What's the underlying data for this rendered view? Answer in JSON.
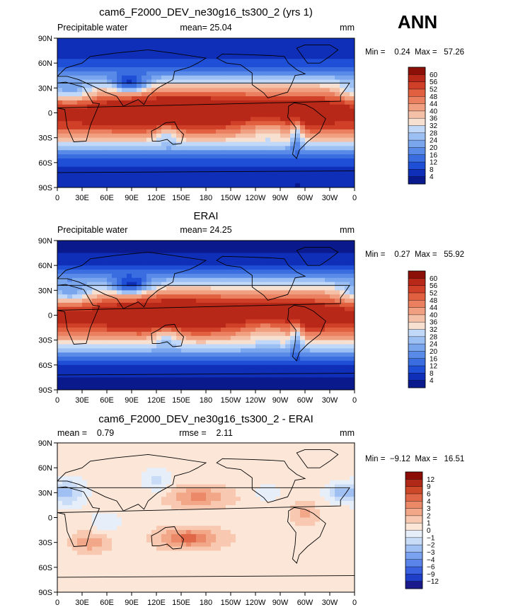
{
  "season_label": "ANN",
  "palettes": {
    "absolute": [
      "#0a1a8c",
      "#0f2fb8",
      "#1f4fd6",
      "#3a6de0",
      "#5a8ae8",
      "#7aa6ee",
      "#9cc0f3",
      "#c2d8f8",
      "#f8e0d0",
      "#f4c0a8",
      "#f0a080",
      "#ea8060",
      "#e06040",
      "#d04028",
      "#b82818",
      "#8c1008"
    ],
    "difference": [
      "#1a1a8c",
      "#1f3fc8",
      "#3a62e0",
      "#5a84ea",
      "#7aa2f0",
      "#a0c0f4",
      "#c8dcf8",
      "#e6eefa",
      "#fbe6d8",
      "#f8c8b0",
      "#f2a888",
      "#ea8868",
      "#e06848",
      "#cc4828",
      "#b02818",
      "#8c0c06"
    ]
  },
  "chart_data": [
    {
      "type": "heatmap",
      "id": "model",
      "title": "cam6_F2000_DEV_ne30g16_ts300_2 (yrs 1)",
      "left_label": "Precipitable water",
      "center_label": "mean=   25.04",
      "right_label": "mm",
      "minmax_label": "Min =    0.24  Max =   57.26",
      "min": 0.24,
      "max": 57.26,
      "mean": 25.04,
      "x_ticks": [
        "0",
        "30E",
        "60E",
        "90E",
        "120E",
        "150E",
        "180",
        "150W",
        "120W",
        "90W",
        "60W",
        "30W",
        "0"
      ],
      "y_ticks": [
        "90N",
        "60N",
        "30N",
        "0",
        "30S",
        "60S",
        "90S"
      ],
      "xlim": [
        0,
        360
      ],
      "ylim": [
        -90,
        90
      ],
      "colorbar_labels": [
        "60",
        "56",
        "52",
        "48",
        "44",
        "40",
        "36",
        "32",
        "28",
        "24",
        "20",
        "16",
        "12",
        "8",
        "4"
      ],
      "colorbar_range": [
        0,
        64
      ],
      "palette": "absolute"
    },
    {
      "type": "heatmap",
      "id": "obs",
      "title": "ERAI",
      "left_label": "Precipitable water",
      "center_label": "mean=   24.25",
      "right_label": "mm",
      "minmax_label": "Min =    0.27  Max =   55.92",
      "min": 0.27,
      "max": 55.92,
      "mean": 24.25,
      "x_ticks": [
        "0",
        "30E",
        "60E",
        "90E",
        "120E",
        "150E",
        "180",
        "150W",
        "120W",
        "90W",
        "60W",
        "30W",
        "0"
      ],
      "y_ticks": [
        "90N",
        "60N",
        "30N",
        "0",
        "30S",
        "60S",
        "90S"
      ],
      "xlim": [
        0,
        360
      ],
      "ylim": [
        -90,
        90
      ],
      "colorbar_labels": [
        "60",
        "56",
        "52",
        "48",
        "44",
        "40",
        "36",
        "32",
        "28",
        "24",
        "20",
        "16",
        "12",
        "8",
        "4"
      ],
      "colorbar_range": [
        0,
        64
      ],
      "palette": "absolute"
    },
    {
      "type": "heatmap",
      "id": "diff",
      "title": "cam6_F2000_DEV_ne30g16_ts300_2 - ERAI",
      "left_label": "mean =    0.79",
      "center_label": "rmse =    2.11",
      "right_label": "mm",
      "minmax_label": "Min =  −9.12  Max =   16.51",
      "min": -9.12,
      "max": 16.51,
      "mean": 0.79,
      "rmse": 2.11,
      "x_ticks": [
        "0",
        "30E",
        "60E",
        "90E",
        "120E",
        "150E",
        "180",
        "150W",
        "120W",
        "90W",
        "60W",
        "30W",
        "0"
      ],
      "y_ticks": [
        "90N",
        "60N",
        "30N",
        "0",
        "30S",
        "60S",
        "90S"
      ],
      "xlim": [
        0,
        360
      ],
      "ylim": [
        -90,
        90
      ],
      "colorbar_labels": [
        "12",
        "9",
        "6",
        "4",
        "3",
        "2",
        "1",
        "0",
        "−1",
        "−2",
        "−3",
        "−4",
        "−6",
        "−9",
        "−12"
      ],
      "colorbar_range": [
        -15,
        15
      ],
      "palette": "difference"
    }
  ]
}
